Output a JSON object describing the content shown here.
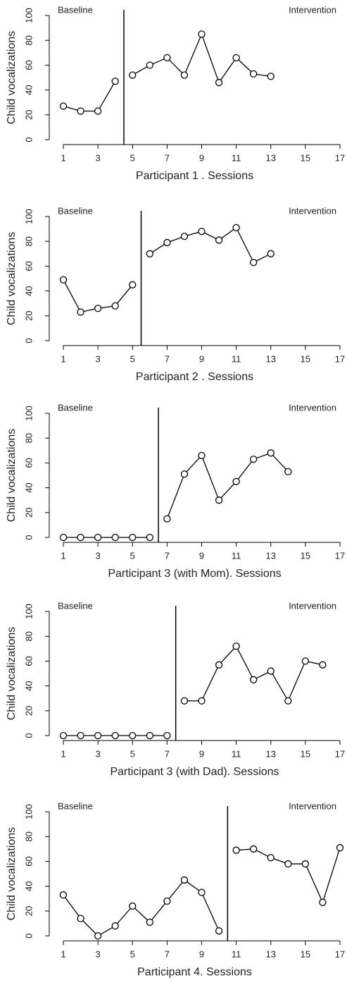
{
  "chart_data": [
    {
      "type": "line",
      "ylabel": "Child vocalizations",
      "xlabel": "Participant 1 . Sessions",
      "annotations": [
        "Baseline",
        "Intervention"
      ],
      "phase_change": 4.5,
      "xlim": [
        1,
        17
      ],
      "xticks": [
        1,
        3,
        5,
        7,
        9,
        11,
        13,
        15,
        17
      ],
      "ylim": [
        0,
        100
      ],
      "yticks": [
        0,
        20,
        40,
        60,
        80,
        100
      ],
      "color": "#000000",
      "series": [
        {
          "x": [
            1,
            2,
            3,
            4
          ],
          "values": [
            27,
            23,
            23,
            47
          ]
        },
        {
          "x": [
            5,
            6,
            7,
            8,
            9,
            10,
            11,
            12,
            13
          ],
          "values": [
            52,
            60,
            66,
            52,
            85,
            46,
            66,
            53,
            51
          ]
        }
      ]
    },
    {
      "type": "line",
      "ylabel": "Child vocalizations",
      "xlabel": "Participant 2 . Sessions",
      "annotations": [
        "Baseline",
        "Intervention"
      ],
      "phase_change": 5.5,
      "xlim": [
        1,
        17
      ],
      "xticks": [
        1,
        3,
        5,
        7,
        9,
        11,
        13,
        15,
        17
      ],
      "ylim": [
        0,
        100
      ],
      "yticks": [
        0,
        20,
        40,
        60,
        80,
        100
      ],
      "color": "#000000",
      "series": [
        {
          "x": [
            1,
            2,
            3,
            4,
            5
          ],
          "values": [
            49,
            23,
            26,
            28,
            45
          ]
        },
        {
          "x": [
            6,
            7,
            8,
            9,
            10,
            11,
            12,
            13
          ],
          "values": [
            70,
            79,
            84,
            88,
            81,
            91,
            63,
            70
          ]
        }
      ]
    },
    {
      "type": "line",
      "ylabel": "Child vocalizations",
      "xlabel": "Participant 3 (with Mom). Sessions",
      "annotations": [
        "Baseline",
        "Intervention"
      ],
      "phase_change": 6.5,
      "xlim": [
        1,
        17
      ],
      "xticks": [
        1,
        3,
        5,
        7,
        9,
        11,
        13,
        15,
        17
      ],
      "ylim": [
        0,
        100
      ],
      "yticks": [
        0,
        20,
        40,
        60,
        80,
        100
      ],
      "color": "#000000",
      "series": [
        {
          "x": [
            1,
            2,
            3,
            4,
            5,
            6
          ],
          "values": [
            0,
            0,
            0,
            0,
            0,
            0
          ]
        },
        {
          "x": [
            7,
            8,
            9,
            10,
            11,
            12,
            13,
            14
          ],
          "values": [
            15,
            51,
            66,
            30,
            45,
            63,
            68,
            53
          ]
        }
      ]
    },
    {
      "type": "line",
      "ylabel": "Child vocalizations",
      "xlabel": "Participant 3 (with Dad). Sessions",
      "annotations": [
        "Baseline",
        "Intervention"
      ],
      "phase_change": 7.5,
      "xlim": [
        1,
        17
      ],
      "xticks": [
        1,
        3,
        5,
        7,
        9,
        11,
        13,
        15,
        17
      ],
      "ylim": [
        0,
        100
      ],
      "yticks": [
        0,
        20,
        40,
        60,
        80,
        100
      ],
      "color": "#000000",
      "series": [
        {
          "x": [
            1,
            2,
            3,
            4,
            5,
            6,
            7
          ],
          "values": [
            0,
            0,
            0,
            0,
            0,
            0,
            0
          ]
        },
        {
          "x": [
            8,
            9,
            10,
            11,
            12,
            13,
            14,
            15,
            16
          ],
          "values": [
            28,
            28,
            57,
            72,
            45,
            52,
            28,
            60,
            57
          ]
        }
      ]
    },
    {
      "type": "line",
      "ylabel": "Child vocalizations",
      "xlabel": "Participant 4. Sessions",
      "annotations": [
        "Baseline",
        "Intervention"
      ],
      "phase_change": 10.5,
      "xlim": [
        1,
        17
      ],
      "xticks": [
        1,
        3,
        5,
        7,
        9,
        11,
        13,
        15,
        17
      ],
      "ylim": [
        0,
        100
      ],
      "yticks": [
        0,
        20,
        40,
        60,
        80,
        100
      ],
      "color": "#000000",
      "series": [
        {
          "x": [
            1,
            2,
            3,
            4,
            5,
            6,
            7,
            8,
            9,
            10
          ],
          "values": [
            33,
            14,
            0,
            8,
            24,
            11,
            28,
            45,
            35,
            4
          ]
        },
        {
          "x": [
            11,
            12,
            13,
            14,
            15,
            16,
            17
          ],
          "values": [
            69,
            70,
            63,
            58,
            58,
            27,
            71
          ]
        }
      ]
    }
  ]
}
